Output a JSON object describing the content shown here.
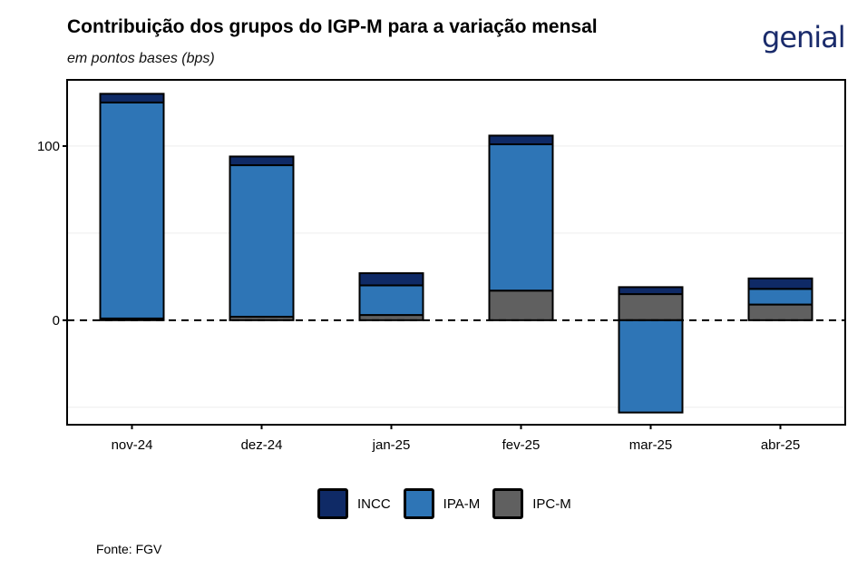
{
  "title": "Contribuição dos grupos do IGP-M para a variação mensal",
  "subtitle": "em pontos bases (bps)",
  "logo": "genial",
  "source": "Fonte: FGV",
  "colors": {
    "INCC": "#0f2a66",
    "IPA-M": "#2e75b6",
    "IPC-M": "#606060"
  },
  "chart_data": {
    "type": "bar",
    "stacked": true,
    "categories": [
      "nov-24",
      "dez-24",
      "jan-25",
      "fev-25",
      "mar-25",
      "abr-25"
    ],
    "series": [
      {
        "name": "IPC-M",
        "values": [
          1,
          2,
          3,
          17,
          15,
          9
        ]
      },
      {
        "name": "IPA-M",
        "values": [
          124,
          87,
          17,
          84,
          -53,
          9
        ]
      },
      {
        "name": "INCC",
        "values": [
          5,
          5,
          7,
          5,
          4,
          6
        ]
      }
    ],
    "yticks": [
      0,
      100
    ],
    "ylim": [
      -60,
      138
    ],
    "zero_line": "dashed",
    "legend_position": "bottom"
  }
}
